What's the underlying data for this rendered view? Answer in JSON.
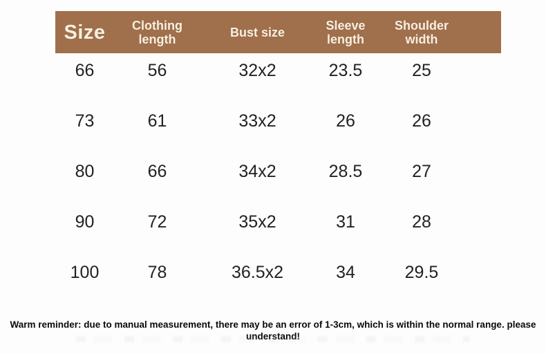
{
  "colors": {
    "header_bg": "#a06f4c",
    "header_text": "#f7f0e0",
    "body_text": "#222222",
    "reminder_text": "#0a0a0a",
    "page_bg": "#fdfdfd"
  },
  "size_table": {
    "columns": [
      {
        "id": "size",
        "label": "Size"
      },
      {
        "id": "clothing-length",
        "label": "Clothing\nlength"
      },
      {
        "id": "bust-size",
        "label": "Bust size"
      },
      {
        "id": "sleeve-length",
        "label": "Sleeve\nlength"
      },
      {
        "id": "shoulder-width",
        "label": "Shoulder\nwidth"
      }
    ],
    "rows": [
      [
        "66",
        "56",
        "32x2",
        "23.5",
        "25"
      ],
      [
        "73",
        "61",
        "33x2",
        "26",
        "26"
      ],
      [
        "80",
        "66",
        "34x2",
        "28.5",
        "27"
      ],
      [
        "90",
        "72",
        "35x2",
        "31",
        "28"
      ],
      [
        "100",
        "78",
        "36.5x2",
        "34",
        "29.5"
      ]
    ]
  },
  "footer": {
    "reminder": "Warm reminder: due to manual measurement, there may be an error of 1-3cm, which is within the normal range. please understand!"
  }
}
